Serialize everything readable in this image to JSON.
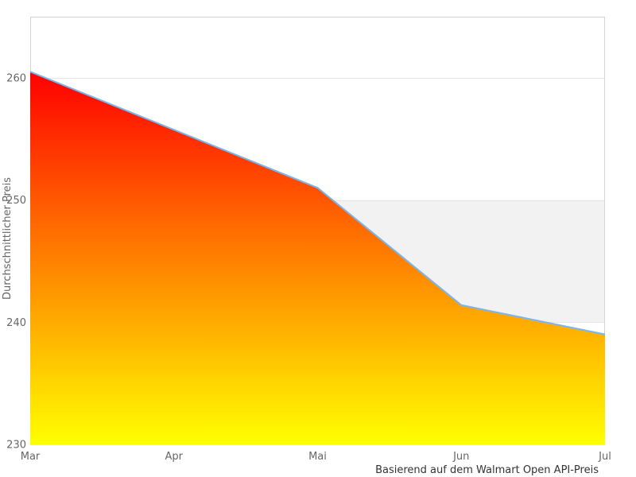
{
  "chart_data": {
    "type": "area",
    "categories": [
      "Mar",
      "Apr",
      "Mai",
      "Jun",
      "Jul"
    ],
    "values": [
      260.5,
      255.75,
      251,
      241.4,
      239
    ],
    "series": [
      {
        "name": "Durchschnittlicher Preis",
        "values": [
          260.5,
          255.75,
          251,
          241.4,
          239
        ]
      }
    ],
    "title": "",
    "xlabel": "",
    "ylabel": "Durchschnittlicher Preis",
    "caption": "Basierend auf dem Walmart Open API-Preis",
    "ylim": [
      230,
      265
    ],
    "yticks": [
      230,
      240,
      250,
      260
    ],
    "xtick_labels": [
      "Mar",
      "Apr",
      "Mai",
      "Jun",
      "Jul"
    ],
    "plot_band": {
      "from": 240,
      "to": 250,
      "color": "#f2f2f2"
    },
    "grid": true,
    "legend": "none",
    "line_width": 2,
    "colors": {
      "line": "#7cb5ec",
      "gradient_top": "#ff0000",
      "gradient_bottom": "#ffff00",
      "gridline": "#e6e6e6",
      "plot_border": "#d4d4d4",
      "axis_label": "#666666",
      "caption": "#333333",
      "background": "#ffffff"
    }
  }
}
